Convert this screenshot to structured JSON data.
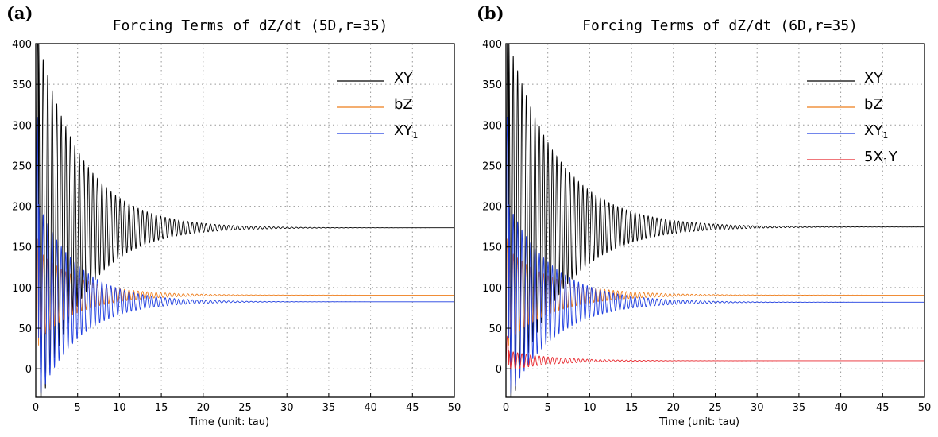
{
  "chart_data": [
    {
      "panel_label": "(a)",
      "type": "line",
      "title": "Forcing Terms of dZ/dt (5D,r=35)",
      "xlabel": "Time (unit: tau)",
      "ylabel": "",
      "xlim": [
        0,
        50
      ],
      "ylim": [
        -35,
        400
      ],
      "xticks": [
        0,
        5,
        10,
        15,
        20,
        25,
        30,
        35,
        40,
        45,
        50
      ],
      "yticks": [
        0,
        50,
        100,
        150,
        200,
        250,
        300,
        350,
        400
      ],
      "grid": true,
      "legend_position": "top-right",
      "series": [
        {
          "name": "XY",
          "sub": "",
          "color": "#000000",
          "style": "osc",
          "final": 173.5,
          "amp0": 230,
          "decay": 0.19,
          "period": 0.54,
          "spike": 420
        },
        {
          "name": "bZ",
          "sub": "",
          "color": "#ee7d1b",
          "style": "osc",
          "final": 90.7,
          "amp0": 55,
          "decay": 0.2,
          "period": 0.54,
          "spike": 160
        },
        {
          "name": "XY",
          "sub": "1",
          "color": "#1f3ee0",
          "style": "osc",
          "final": 82.5,
          "amp0": 120,
          "decay": 0.21,
          "period": 0.54,
          "spike": 310
        }
      ]
    },
    {
      "panel_label": "(b)",
      "type": "line",
      "title": "Forcing Terms of dZ/dt (6D,r=35)",
      "xlabel": "Time (unit: tau)",
      "ylabel": "",
      "xlim": [
        0,
        50
      ],
      "ylim": [
        -35,
        400
      ],
      "xticks": [
        0,
        5,
        10,
        15,
        20,
        25,
        30,
        35,
        40,
        45,
        50
      ],
      "yticks": [
        0,
        50,
        100,
        150,
        200,
        250,
        300,
        350,
        400
      ],
      "grid": true,
      "legend_position": "top-right",
      "series": [
        {
          "name": "XY",
          "sub": "",
          "color": "#000000",
          "style": "osc",
          "final": 174.5,
          "amp0": 230,
          "decay": 0.17,
          "period": 0.52,
          "spike": 420
        },
        {
          "name": "bZ",
          "sub": "",
          "color": "#ee7d1b",
          "style": "osc",
          "final": 90.7,
          "amp0": 55,
          "decay": 0.18,
          "period": 0.52,
          "spike": 160
        },
        {
          "name": "XY",
          "sub": "1",
          "color": "#1f3ee0",
          "style": "osc",
          "final": 82.0,
          "amp0": 120,
          "decay": 0.19,
          "period": 0.52,
          "spike": 310
        },
        {
          "name": "5X",
          "sub": "1",
          "name2": "Y",
          "color": "#e8262c",
          "style": "osc",
          "final": 10.0,
          "amp0": 12,
          "decay": 0.2,
          "period": 0.52,
          "spike": 40
        }
      ]
    }
  ]
}
